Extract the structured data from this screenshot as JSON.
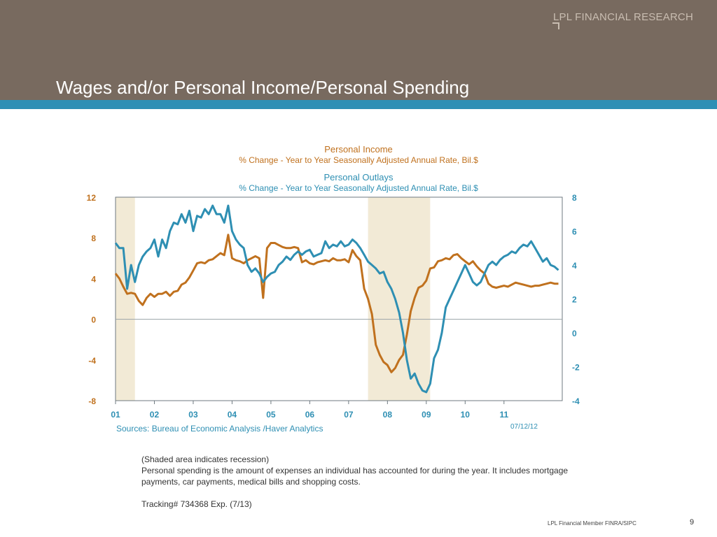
{
  "brand": "LPL FINANCIAL RESEARCH",
  "slide_title": "Wages and/or Personal Income/Personal Spending",
  "chart_data": {
    "type": "line",
    "title_income": "Personal Income",
    "subtitle_income": "% Change - Year to Year    Seasonally Adjusted Annual Rate, Bil.$",
    "title_outlays": "Personal Outlays",
    "subtitle_outlays": "% Change - Year to Year    Seasonally Adjusted Annual Rate, Bil.$",
    "x_ticks": [
      "01",
      "02",
      "03",
      "04",
      "05",
      "06",
      "07",
      "08",
      "09",
      "10",
      "11"
    ],
    "xlim": [
      2001.0,
      2012.5
    ],
    "left_axis": {
      "ticks": [
        "12",
        "8",
        "4",
        "0",
        "-4",
        "-8"
      ],
      "ylim": [
        -8,
        12
      ],
      "color": "#c0711e"
    },
    "right_axis": {
      "ticks": [
        "8",
        "6",
        "4",
        "2",
        "0",
        "-2",
        "-4"
      ],
      "ylim": [
        -4,
        8
      ],
      "color": "#2e8fb3"
    },
    "recessions": [
      [
        2001.0,
        2001.5
      ],
      [
        2007.5,
        2009.1
      ]
    ],
    "grid": false,
    "series": [
      {
        "name": "Personal Income",
        "axis": "left",
        "color": "#c0711e",
        "x": [
          2001.0,
          2001.1,
          2001.2,
          2001.3,
          2001.4,
          2001.5,
          2001.6,
          2001.7,
          2001.8,
          2001.9,
          2002.0,
          2002.1,
          2002.2,
          2002.3,
          2002.4,
          2002.5,
          2002.6,
          2002.7,
          2002.8,
          2002.9,
          2003.0,
          2003.1,
          2003.2,
          2003.3,
          2003.4,
          2003.5,
          2003.6,
          2003.7,
          2003.8,
          2003.9,
          2004.0,
          2004.1,
          2004.2,
          2004.3,
          2004.4,
          2004.5,
          2004.6,
          2004.7,
          2004.8,
          2004.9,
          2005.0,
          2005.1,
          2005.2,
          2005.3,
          2005.4,
          2005.5,
          2005.6,
          2005.7,
          2005.8,
          2005.9,
          2006.0,
          2006.1,
          2006.2,
          2006.3,
          2006.4,
          2006.5,
          2006.6,
          2006.7,
          2006.8,
          2006.9,
          2007.0,
          2007.1,
          2007.2,
          2007.3,
          2007.4,
          2007.5,
          2007.6,
          2007.7,
          2007.8,
          2007.9,
          2008.0,
          2008.1,
          2008.2,
          2008.3,
          2008.4,
          2008.5,
          2008.6,
          2008.7,
          2008.8,
          2008.9,
          2009.0,
          2009.1,
          2009.2,
          2009.3,
          2009.4,
          2009.5,
          2009.6,
          2009.7,
          2009.8,
          2009.9,
          2010.0,
          2010.1,
          2010.2,
          2010.3,
          2010.4,
          2010.5,
          2010.6,
          2010.7,
          2010.8,
          2010.9,
          2011.0,
          2011.1,
          2011.2,
          2011.3,
          2011.4,
          2011.5,
          2011.6,
          2011.7,
          2011.8,
          2011.9,
          2012.0,
          2012.1,
          2012.2,
          2012.3,
          2012.4
        ],
        "values": [
          4.5,
          4.0,
          3.2,
          2.5,
          2.6,
          2.5,
          1.8,
          1.4,
          2.1,
          2.5,
          2.2,
          2.5,
          2.5,
          2.7,
          2.3,
          2.7,
          2.8,
          3.4,
          3.6,
          4.1,
          4.8,
          5.5,
          5.6,
          5.5,
          5.8,
          5.9,
          6.2,
          6.5,
          6.3,
          8.3,
          6.0,
          5.8,
          5.7,
          5.5,
          5.8,
          6.0,
          6.2,
          6.0,
          2.1,
          7.0,
          7.5,
          7.5,
          7.3,
          7.1,
          7.0,
          7.0,
          7.1,
          7.0,
          5.6,
          5.8,
          5.5,
          5.4,
          5.6,
          5.7,
          5.8,
          5.7,
          6.0,
          5.8,
          5.8,
          5.9,
          5.6,
          6.8,
          6.2,
          5.8,
          3.0,
          2.0,
          0.5,
          -2.5,
          -3.5,
          -4.2,
          -4.5,
          -5.2,
          -4.8,
          -4.0,
          -3.5,
          -1.5,
          0.8,
          2.1,
          3.1,
          3.3,
          3.8,
          5.0,
          5.1,
          5.7,
          5.8,
          6.0,
          5.9,
          6.3,
          6.4,
          6.0,
          5.7,
          5.4,
          5.7,
          5.2,
          4.8,
          4.5,
          3.5,
          3.2,
          3.1,
          3.2,
          3.3,
          3.2,
          3.4,
          3.6,
          3.5,
          3.4,
          3.3,
          3.2,
          3.3,
          3.3,
          3.4,
          3.5,
          3.6,
          3.5,
          3.5
        ]
      },
      {
        "name": "Personal Outlays",
        "axis": "right",
        "color": "#2e8fb3",
        "x": [
          2001.0,
          2001.1,
          2001.2,
          2001.3,
          2001.4,
          2001.5,
          2001.6,
          2001.7,
          2001.8,
          2001.9,
          2002.0,
          2002.1,
          2002.2,
          2002.3,
          2002.4,
          2002.5,
          2002.6,
          2002.7,
          2002.8,
          2002.9,
          2003.0,
          2003.1,
          2003.2,
          2003.3,
          2003.4,
          2003.5,
          2003.6,
          2003.7,
          2003.8,
          2003.9,
          2004.0,
          2004.1,
          2004.2,
          2004.3,
          2004.4,
          2004.5,
          2004.6,
          2004.7,
          2004.8,
          2004.9,
          2005.0,
          2005.1,
          2005.2,
          2005.3,
          2005.4,
          2005.5,
          2005.6,
          2005.7,
          2005.8,
          2005.9,
          2006.0,
          2006.1,
          2006.2,
          2006.3,
          2006.4,
          2006.5,
          2006.6,
          2006.7,
          2006.8,
          2006.9,
          2007.0,
          2007.1,
          2007.2,
          2007.3,
          2007.4,
          2007.5,
          2007.6,
          2007.7,
          2007.8,
          2007.9,
          2008.0,
          2008.1,
          2008.2,
          2008.3,
          2008.4,
          2008.5,
          2008.6,
          2008.7,
          2008.8,
          2008.9,
          2009.0,
          2009.1,
          2009.2,
          2009.3,
          2009.4,
          2009.5,
          2009.6,
          2009.7,
          2009.8,
          2009.9,
          2010.0,
          2010.1,
          2010.2,
          2010.3,
          2010.4,
          2010.5,
          2010.6,
          2010.7,
          2010.8,
          2010.9,
          2011.0,
          2011.1,
          2011.2,
          2011.3,
          2011.4,
          2011.5,
          2011.6,
          2011.7,
          2011.8,
          2011.9,
          2012.0,
          2012.1,
          2012.2,
          2012.3,
          2012.4
        ],
        "values": [
          5.3,
          5.0,
          5.0,
          2.6,
          4.0,
          3.0,
          4.0,
          4.5,
          4.8,
          5.0,
          5.5,
          4.5,
          5.5,
          5.0,
          6.0,
          6.5,
          6.4,
          7.0,
          6.5,
          7.2,
          6.0,
          6.9,
          6.8,
          7.3,
          7.0,
          7.5,
          7.0,
          7.0,
          6.5,
          7.5,
          6.0,
          5.5,
          5.2,
          5.0,
          4.0,
          3.6,
          3.8,
          3.5,
          3.0,
          3.3,
          3.5,
          3.6,
          4.0,
          4.2,
          4.5,
          4.3,
          4.6,
          4.8,
          4.6,
          4.8,
          4.9,
          4.5,
          4.6,
          4.7,
          5.4,
          5.0,
          5.2,
          5.1,
          5.4,
          5.1,
          5.2,
          5.5,
          5.3,
          5.0,
          4.6,
          4.2,
          4.0,
          3.8,
          3.5,
          3.6,
          3.0,
          2.6,
          2.0,
          1.2,
          0.0,
          -1.6,
          -2.7,
          -2.4,
          -3.0,
          -3.4,
          -3.5,
          -3.0,
          -1.5,
          -1.0,
          0.0,
          1.5,
          2.0,
          2.5,
          3.0,
          3.5,
          4.0,
          3.5,
          3.0,
          2.8,
          3.0,
          3.5,
          4.0,
          4.2,
          4.0,
          4.3,
          4.5,
          4.6,
          4.8,
          4.7,
          5.0,
          5.2,
          5.1,
          5.4,
          5.0,
          4.6,
          4.2,
          4.4,
          4.0,
          3.9,
          3.7
        ]
      }
    ]
  },
  "sources": "Sources:  Bureau of Economic Analysis /Haver Analytics",
  "chart_date": "07/12/12",
  "notes": {
    "line1": "(Shaded area indicates recession)",
    "line2": "Personal spending is the amount of expenses an individual has accounted for during the year. It includes mortgage payments, car payments, medical bills and shopping costs.",
    "line3": "Tracking# 734368 Exp. (7/13)"
  },
  "footer": {
    "member": "LPL Financial Member FINRA/SIPC",
    "page": "9"
  }
}
